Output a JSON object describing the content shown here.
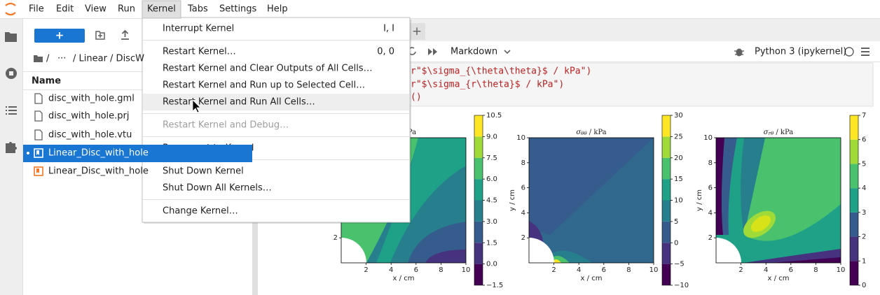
{
  "menubar": {
    "items": [
      "File",
      "Edit",
      "View",
      "Run",
      "Kernel",
      "Tabs",
      "Settings",
      "Help"
    ],
    "open": "Kernel"
  },
  "file_browser": {
    "new_button": "+",
    "breadcrumb": [
      "/",
      "···",
      "/ Linear / DiscW"
    ],
    "column": "Name",
    "files": [
      {
        "name": "disc_with_hole.gml",
        "kind": "file"
      },
      {
        "name": "disc_with_hole.prj",
        "kind": "file"
      },
      {
        "name": "disc_with_hole.vtu",
        "kind": "file"
      },
      {
        "name": "Linear_Disc_with_hole",
        "kind": "notebook",
        "selected": true
      },
      {
        "name": "Linear_Disc_with_hole",
        "kind": "notebook"
      }
    ]
  },
  "notebook": {
    "new_tab": "+",
    "cell_type": "Markdown",
    "kernel": "Python 3 (ipykernel)",
    "code_lines": [
      "r\"$\\sigma_{\\theta\\theta}$ / kPa\")",
      "r\"$\\sigma_{r\\theta}$ / kPa\")",
      "()"
    ]
  },
  "kernel_menu": {
    "groups": [
      [
        {
          "label": "Interrupt Kernel",
          "shortcut": "I, I"
        }
      ],
      [
        {
          "label": "Restart Kernel…",
          "shortcut": "0, 0"
        },
        {
          "label": "Restart Kernel and Clear Outputs of All Cells…"
        },
        {
          "label": "Restart Kernel and Run up to Selected Cell…"
        },
        {
          "label": "Restart Kernel and Run All Cells…",
          "hover": true
        }
      ],
      [
        {
          "label": "Restart Kernel and Debug…",
          "disabled": true
        }
      ],
      [
        {
          "label": "Reconnect to Kernel"
        }
      ],
      [
        {
          "label": "Shut Down Kernel"
        },
        {
          "label": "Shut Down All Kernels…"
        }
      ],
      [
        {
          "label": "Change Kernel…"
        }
      ]
    ]
  },
  "plots": [
    {
      "title": {
        "text": "kPa"
      },
      "xticks": [
        "2",
        "4",
        "6",
        "8",
        "10"
      ],
      "yticks": [
        "2"
      ],
      "xlabel": "x / cm",
      "colorbar": [
        "10.5",
        "9.0",
        "7.5",
        "6.0",
        "4.5",
        "3.0",
        "1.5",
        "0.0",
        "−1.5"
      ]
    },
    {
      "title": {
        "symbol": "σ",
        "sub": "θθ",
        "unit": " / kPa"
      },
      "xticks": [
        "2",
        "4",
        "6",
        "8",
        "10"
      ],
      "yticks": [
        "10",
        "8",
        "6",
        "4",
        "2"
      ],
      "xlabel": "x / cm",
      "ylabel": "y / cm",
      "colorbar": [
        "30",
        "25",
        "20",
        "15",
        "10",
        "5",
        "0",
        "−5",
        "−10"
      ]
    },
    {
      "title": {
        "symbol": "σ",
        "sub": "rθ",
        "unit": " / kPa"
      },
      "xticks": [
        "2",
        "4",
        "6",
        "8",
        "10"
      ],
      "yticks": [
        "10",
        "8",
        "6",
        "4",
        "2"
      ],
      "xlabel": "x / cm",
      "ylabel": "y / cm",
      "colorbar": [
        "7",
        "6",
        "5",
        "4",
        "3",
        "2",
        "1",
        "0"
      ]
    }
  ]
}
